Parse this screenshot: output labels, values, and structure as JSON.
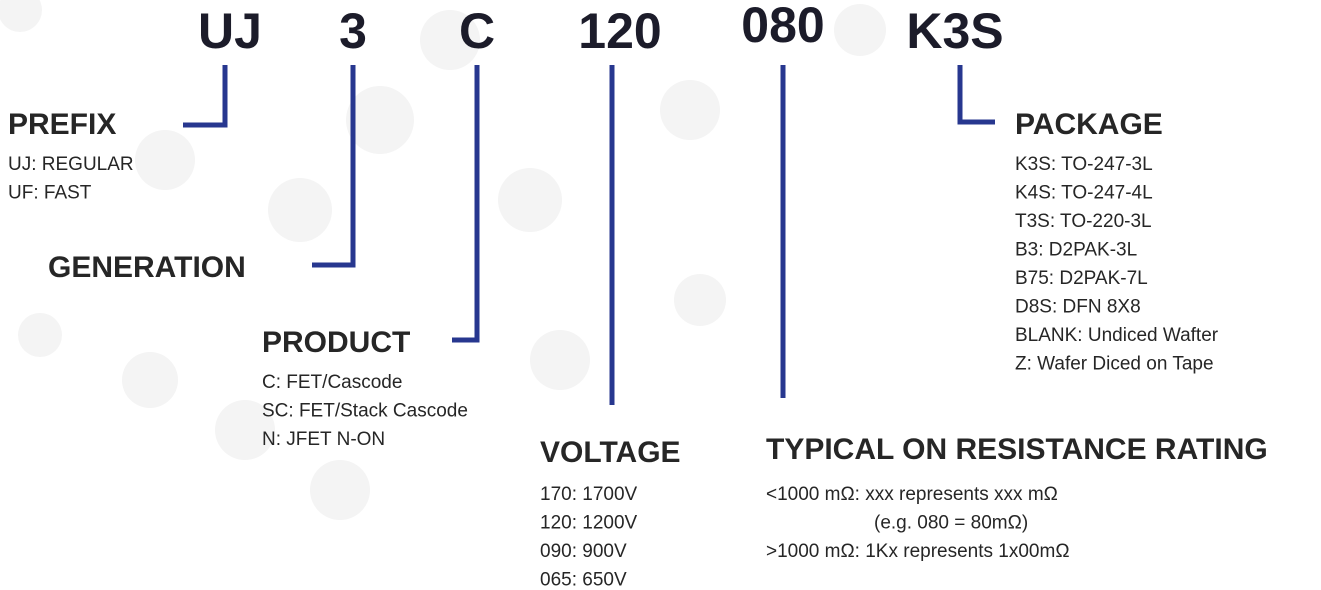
{
  "code": [
    "UJ",
    "3",
    "C",
    "120",
    "080",
    "K3S"
  ],
  "sections": [
    {
      "title": "PREFIX",
      "items": [
        "UJ: REGULAR",
        "UF: FAST"
      ]
    },
    {
      "title": "GENERATION",
      "items": []
    },
    {
      "title": "PRODUCT",
      "items": [
        "C: FET/Cascode",
        "SC: FET/Stack Cascode",
        "N: JFET N-ON"
      ]
    },
    {
      "title": "VOLTAGE",
      "items": [
        "170: 1700V",
        "120: 1200V",
        "090: 900V",
        "065: 650V"
      ]
    },
    {
      "title": "TYPICAL ON RESISTANCE RATING",
      "items": [
        "<1000 mΩ: xxx represents xxx mΩ",
        "(e.g. 080 = 80mΩ)",
        ">1000 mΩ: 1Kx represents 1x00mΩ"
      ]
    },
    {
      "title": "PACKAGE",
      "items": [
        "K3S: TO-247-3L",
        "K4S: TO-247-4L",
        "T3S: TO-220-3L",
        "B3: D2PAK-3L",
        "B75: D2PAK-7L",
        "D8S: DFN 8X8",
        "BLANK: Undiced Wafter",
        "Z: Wafer Diced on Tape"
      ]
    }
  ]
}
